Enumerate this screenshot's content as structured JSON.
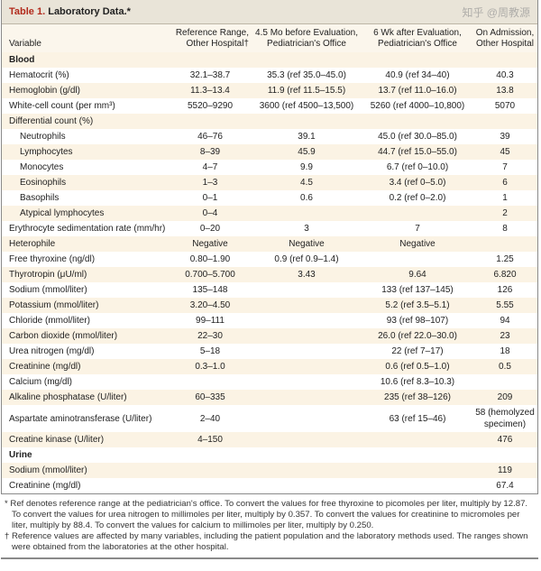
{
  "title": {
    "label": "Table 1.",
    "text": "Laboratory Data.*"
  },
  "columns": [
    "Variable",
    "Reference Range, Other Hospital†",
    "4.5 Mo before Evaluation, Pediatrician's Office",
    "6 Wk after Evaluation, Pediatrician's Office",
    "On Admission, Other Hospital"
  ],
  "rows": [
    {
      "type": "section",
      "cells": [
        "Blood",
        "",
        "",
        "",
        ""
      ]
    },
    {
      "cells": [
        "Hematocrit (%)",
        "32.1–38.7",
        "35.3 (ref 35.0–45.0)",
        "40.9 (ref 34–40)",
        "40.3"
      ]
    },
    {
      "cells": [
        "Hemoglobin (g/dl)",
        "11.3–13.4",
        "11.9 (ref 11.5–15.5)",
        "13.7 (ref 11.0–16.0)",
        "13.8"
      ]
    },
    {
      "cells": [
        "White-cell count (per mm³)",
        "5520–9290",
        "3600 (ref 4500–13,500)",
        "5260 (ref 4000–10,800)",
        "5070"
      ]
    },
    {
      "cells": [
        "Differential count (%)",
        "",
        "",
        "",
        ""
      ]
    },
    {
      "indent": true,
      "cells": [
        "Neutrophils",
        "46–76",
        "39.1",
        "45.0 (ref 30.0–85.0)",
        "39"
      ]
    },
    {
      "indent": true,
      "cells": [
        "Lymphocytes",
        "8–39",
        "45.9",
        "44.7 (ref 15.0–55.0)",
        "45"
      ]
    },
    {
      "indent": true,
      "cells": [
        "Monocytes",
        "4–7",
        "9.9",
        "6.7 (ref 0–10.0)",
        "7"
      ]
    },
    {
      "indent": true,
      "cells": [
        "Eosinophils",
        "1–3",
        "4.5",
        "3.4 (ref 0–5.0)",
        "6"
      ]
    },
    {
      "indent": true,
      "cells": [
        "Basophils",
        "0–1",
        "0.6",
        "0.2 (ref 0–2.0)",
        "1"
      ]
    },
    {
      "indent": true,
      "cells": [
        "Atypical lymphocytes",
        "0–4",
        "",
        "",
        "2"
      ]
    },
    {
      "cells": [
        "Erythrocyte sedimentation rate (mm/hr)",
        "0–20",
        "3",
        "7",
        "8"
      ]
    },
    {
      "cells": [
        "Heterophile",
        "Negative",
        "Negative",
        "Negative",
        ""
      ]
    },
    {
      "cells": [
        "Free thyroxine (ng/dl)",
        "0.80–1.90",
        "0.9 (ref 0.9–1.4)",
        "",
        "1.25"
      ]
    },
    {
      "cells": [
        "Thyrotropin (μU/ml)",
        "0.700–5.700",
        "3.43",
        "9.64",
        "6.820"
      ]
    },
    {
      "cells": [
        "Sodium (mmol/liter)",
        "135–148",
        "",
        "133 (ref 137–145)",
        "126"
      ]
    },
    {
      "cells": [
        "Potassium (mmol/liter)",
        "3.20–4.50",
        "",
        "5.2 (ref 3.5–5.1)",
        "5.55"
      ]
    },
    {
      "cells": [
        "Chloride (mmol/liter)",
        "99–111",
        "",
        "93 (ref 98–107)",
        "94"
      ]
    },
    {
      "cells": [
        "Carbon dioxide (mmol/liter)",
        "22–30",
        "",
        "26.0 (ref 22.0–30.0)",
        "23"
      ]
    },
    {
      "cells": [
        "Urea nitrogen (mg/dl)",
        "5–18",
        "",
        "22 (ref 7–17)",
        "18"
      ]
    },
    {
      "cells": [
        "Creatinine (mg/dl)",
        "0.3–1.0",
        "",
        "0.6 (ref 0.5–1.0)",
        "0.5"
      ]
    },
    {
      "cells": [
        "Calcium (mg/dl)",
        "",
        "",
        "10.6 (ref 8.3–10.3)",
        ""
      ]
    },
    {
      "cells": [
        "Alkaline phosphatase (U/liter)",
        "60–335",
        "",
        "235 (ref 38–126)",
        "209"
      ]
    },
    {
      "tall": true,
      "cells": [
        "Aspartate aminotransferase (U/liter)",
        "2–40",
        "",
        "63 (ref 15–46)",
        "58 (hemolyzed specimen)"
      ]
    },
    {
      "cells": [
        "Creatine kinase (U/liter)",
        "4–150",
        "",
        "",
        "476"
      ]
    },
    {
      "type": "section",
      "cells": [
        "Urine",
        "",
        "",
        "",
        ""
      ]
    },
    {
      "cells": [
        "Sodium (mmol/liter)",
        "",
        "",
        "",
        "119"
      ]
    },
    {
      "cells": [
        "Creatinine (mg/dl)",
        "",
        "",
        "",
        "67.4"
      ]
    }
  ],
  "footnotes": [
    "* Ref denotes reference range at the pediatrician's office. To convert the values for free thyroxine to picomoles per liter, multiply by 12.87. To convert the values for urea nitrogen to millimoles per liter, multiply by 0.357. To convert the values for creatinine to micromoles per liter, multiply by 88.4. To convert the values for calcium to millimoles per liter, multiply by 0.250.",
    "† Reference values are affected by many variables, including the patient population and the laboratory methods used. The ranges shown were obtained from the laboratories at the other hospital."
  ],
  "watermark": "知乎 @周教源"
}
